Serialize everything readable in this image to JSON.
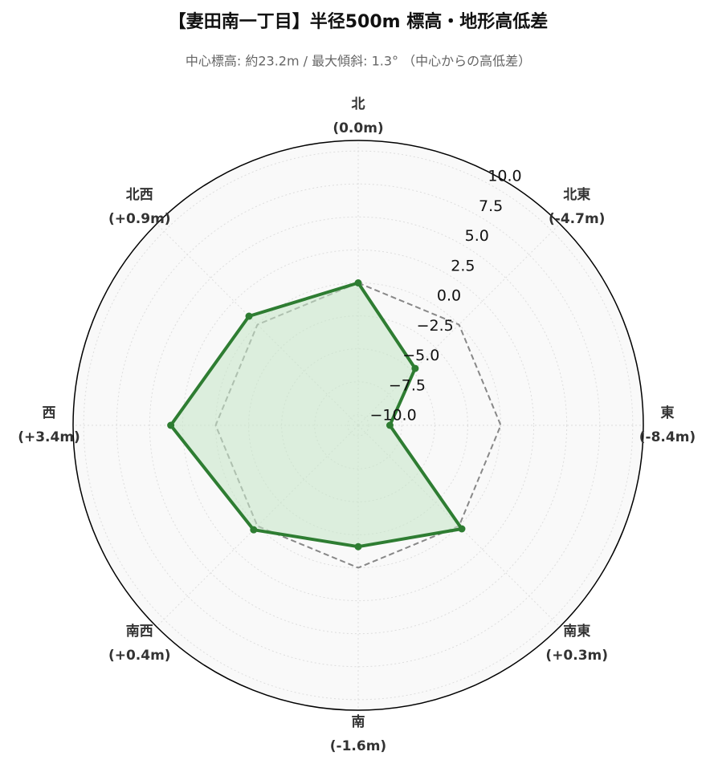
{
  "chart_data": {
    "type": "radar",
    "title": "【妻田南一丁目】半径500m 標高・地形高低差",
    "subtitle": "中心標高: 約23.2m / 最大傾斜: 1.3° （中心からの高低差）",
    "categories": [
      "北",
      "北東",
      "東",
      "南東",
      "南",
      "南西",
      "西",
      "北西"
    ],
    "series": [
      {
        "color": "#2e7d32",
        "fill": "#c8e6c9",
        "values": [
          0.0,
          -4.7,
          -8.4,
          0.3,
          -1.6,
          0.4,
          3.4,
          0.9
        ],
        "value_labels": [
          "(0.0m)",
          "(-4.7m)",
          "(-8.4m)",
          "(+0.3m)",
          "(-1.6m)",
          "(+0.4m)",
          "(+3.4m)",
          "(+0.9m)"
        ]
      },
      {
        "color": "#888888",
        "dashed": true,
        "values": [
          0,
          0,
          0,
          0,
          0,
          0,
          0,
          0
        ]
      }
    ],
    "ylim": [
      -10.8,
      10.8
    ],
    "yticks": [
      {
        "value": -10,
        "label": "−10.0"
      },
      {
        "value": -7.5,
        "label": "−7.5"
      },
      {
        "value": -5,
        "label": "−5.0"
      },
      {
        "value": -2.5,
        "label": "−2.5"
      },
      {
        "value": 0,
        "label": "0.0"
      },
      {
        "value": 2.5,
        "label": "2.5"
      },
      {
        "value": 5,
        "label": "5.0"
      },
      {
        "value": 7.5,
        "label": "7.5"
      },
      {
        "value": 10,
        "label": "10.0"
      }
    ],
    "grid": true
  }
}
